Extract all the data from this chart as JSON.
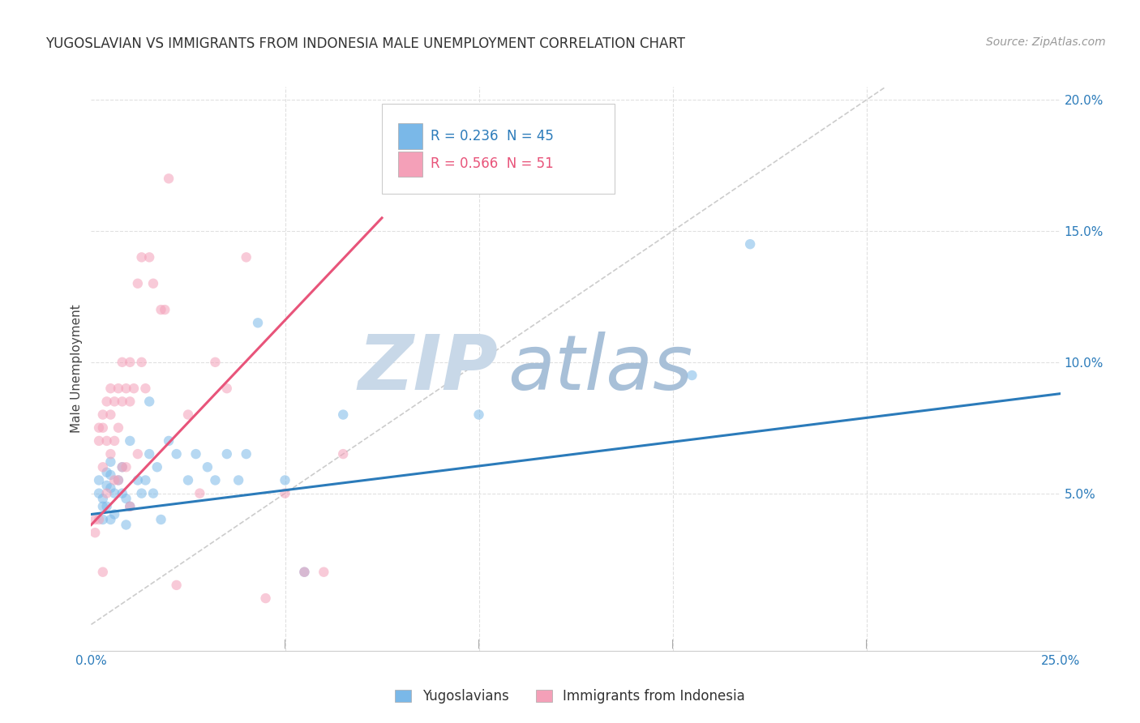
{
  "title": "YUGOSLAVIAN VS IMMIGRANTS FROM INDONESIA MALE UNEMPLOYMENT CORRELATION CHART",
  "source": "Source: ZipAtlas.com",
  "ylabel": "Male Unemployment",
  "x_tick_left": "0.0%",
  "x_tick_right": "25.0%",
  "y_ticks": [
    0.05,
    0.1,
    0.15,
    0.2
  ],
  "y_tick_labels": [
    "5.0%",
    "10.0%",
    "15.0%",
    "20.0%"
  ],
  "xlim": [
    0.0,
    0.25
  ],
  "ylim": [
    -0.01,
    0.205
  ],
  "legend_R_blue": "0.236",
  "legend_N_blue": "45",
  "legend_R_pink": "0.566",
  "legend_N_pink": "51",
  "blue_scatter_x": [
    0.002,
    0.002,
    0.003,
    0.003,
    0.003,
    0.004,
    0.004,
    0.004,
    0.005,
    0.005,
    0.005,
    0.005,
    0.006,
    0.006,
    0.007,
    0.008,
    0.008,
    0.009,
    0.009,
    0.01,
    0.01,
    0.012,
    0.013,
    0.014,
    0.015,
    0.015,
    0.016,
    0.017,
    0.018,
    0.02,
    0.022,
    0.025,
    0.027,
    0.03,
    0.032,
    0.035,
    0.038,
    0.04,
    0.043,
    0.05,
    0.055,
    0.065,
    0.1,
    0.155,
    0.17
  ],
  "blue_scatter_y": [
    0.055,
    0.05,
    0.048,
    0.045,
    0.04,
    0.058,
    0.053,
    0.045,
    0.062,
    0.057,
    0.052,
    0.04,
    0.05,
    0.042,
    0.055,
    0.06,
    0.05,
    0.048,
    0.038,
    0.07,
    0.045,
    0.055,
    0.05,
    0.055,
    0.085,
    0.065,
    0.05,
    0.06,
    0.04,
    0.07,
    0.065,
    0.055,
    0.065,
    0.06,
    0.055,
    0.065,
    0.055,
    0.065,
    0.115,
    0.055,
    0.02,
    0.08,
    0.08,
    0.095,
    0.145
  ],
  "pink_scatter_x": [
    0.001,
    0.001,
    0.002,
    0.002,
    0.002,
    0.003,
    0.003,
    0.003,
    0.003,
    0.004,
    0.004,
    0.004,
    0.005,
    0.005,
    0.005,
    0.006,
    0.006,
    0.006,
    0.007,
    0.007,
    0.007,
    0.008,
    0.008,
    0.008,
    0.009,
    0.009,
    0.01,
    0.01,
    0.01,
    0.011,
    0.012,
    0.012,
    0.013,
    0.013,
    0.014,
    0.015,
    0.016,
    0.018,
    0.019,
    0.02,
    0.022,
    0.025,
    0.028,
    0.032,
    0.035,
    0.04,
    0.045,
    0.05,
    0.055,
    0.06,
    0.065
  ],
  "pink_scatter_y": [
    0.04,
    0.035,
    0.075,
    0.07,
    0.04,
    0.08,
    0.075,
    0.06,
    0.02,
    0.085,
    0.07,
    0.05,
    0.09,
    0.08,
    0.065,
    0.085,
    0.07,
    0.055,
    0.09,
    0.075,
    0.055,
    0.1,
    0.085,
    0.06,
    0.09,
    0.06,
    0.1,
    0.085,
    0.045,
    0.09,
    0.13,
    0.065,
    0.14,
    0.1,
    0.09,
    0.14,
    0.13,
    0.12,
    0.12,
    0.17,
    0.015,
    0.08,
    0.05,
    0.1,
    0.09,
    0.14,
    0.01,
    0.05,
    0.02,
    0.02,
    0.065
  ],
  "blue_line_x": [
    0.0,
    0.25
  ],
  "blue_line_y": [
    0.042,
    0.088
  ],
  "pink_line_x": [
    0.0,
    0.075
  ],
  "pink_line_y": [
    0.038,
    0.155
  ],
  "diag_line_x": [
    0.0,
    0.205
  ],
  "diag_line_y": [
    0.0,
    0.205
  ],
  "scatter_size": 80,
  "scatter_alpha": 0.55,
  "blue_color": "#7ab8e8",
  "pink_color": "#f4a0b8",
  "blue_line_color": "#2b7bba",
  "pink_line_color": "#e8547a",
  "diag_color": "#cccccc",
  "background_color": "#ffffff",
  "watermark_zip_color": "#c8d8e8",
  "watermark_atlas_color": "#a8c0d8",
  "title_fontsize": 12,
  "axis_label_fontsize": 11,
  "tick_fontsize": 11,
  "source_fontsize": 10,
  "grid_color": "#e0e0e0",
  "legend_text_color_blue": "#2b7bba",
  "legend_text_color_pink": "#e8547a"
}
